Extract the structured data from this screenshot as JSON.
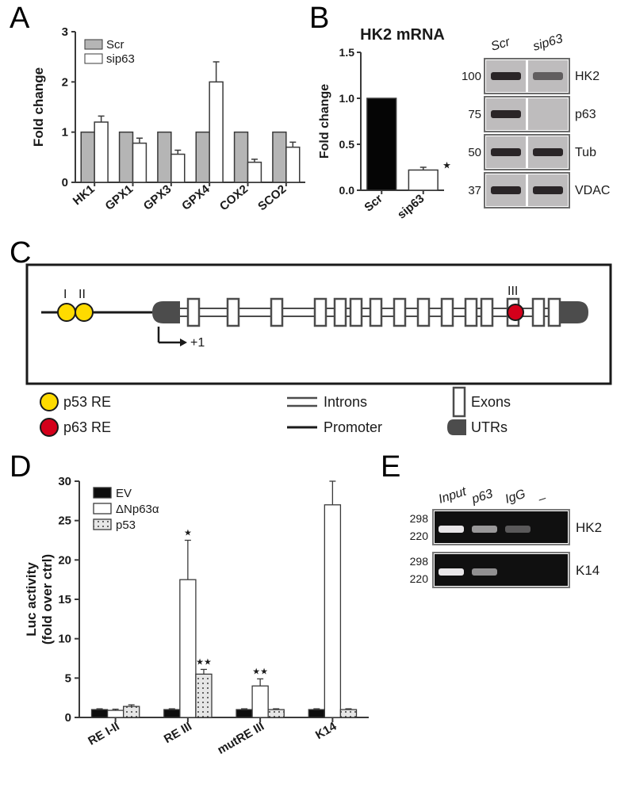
{
  "panels": {
    "A": {
      "label": "A"
    },
    "B": {
      "label": "B"
    },
    "C": {
      "label": "C"
    },
    "D": {
      "label": "D"
    },
    "E": {
      "label": "E"
    }
  },
  "panelA": {
    "ylabel": "Fold change",
    "ylim": [
      0,
      3
    ],
    "yticks": [
      0,
      1,
      2,
      3
    ],
    "legend": [
      "Scr",
      "sip63"
    ],
    "legend_colors": [
      "#b5b5b5",
      "#ffffff"
    ],
    "categories": [
      "HK1",
      "GPX1",
      "GPX3",
      "GPX4",
      "COX2",
      "SCO2"
    ],
    "values_scr": [
      1.0,
      1.0,
      1.0,
      1.0,
      1.0,
      1.0
    ],
    "values_sip63": [
      1.2,
      0.78,
      0.56,
      2.0,
      0.4,
      0.7
    ],
    "errors_sip63": [
      0.12,
      0.1,
      0.08,
      0.4,
      0.06,
      0.1
    ],
    "bar_stroke": "#3a3a3a",
    "axis_color": "#3a3a3a",
    "grid_bg": "#ffffff",
    "bar_width": 0.35
  },
  "panelB": {
    "title": "HK2 mRNA",
    "ylabel": "Fold change",
    "ylim": [
      0,
      1.5
    ],
    "yticks": [
      0,
      0.5,
      1.0,
      1.5
    ],
    "categories": [
      "Scr",
      "sip63"
    ],
    "values": [
      1.0,
      0.22
    ],
    "errors": [
      0,
      0.03
    ],
    "bar_colors": [
      "#050505",
      "#ffffff"
    ],
    "bar_stroke": "#3a3a3a",
    "sig_star": "★",
    "blot": {
      "lanes": [
        "Scr",
        "sip63"
      ],
      "rows": [
        {
          "mw": "100",
          "label": "HK2"
        },
        {
          "mw": "75",
          "label": "p63"
        },
        {
          "mw": "50",
          "label": "Tub"
        },
        {
          "mw": "37",
          "label": "VDAC"
        }
      ],
      "bg": "#bebcbd",
      "band_color": "#2a2527",
      "border": "#6c6c6c"
    }
  },
  "panelC": {
    "legend": {
      "p53re": "p53 RE",
      "p63re": "p63 RE",
      "introns": "Introns",
      "exons": "Exons",
      "promoter": "Promoter",
      "utrs": "UTRs"
    },
    "site_labels": {
      "I": "I",
      "II": "II",
      "III": "III"
    },
    "plus_one": "+1",
    "colors": {
      "p53_circle": "#fedb00",
      "p63_circle": "#d4001b",
      "gene_dark": "#4c4c4c",
      "exon_fill": "#ffffff",
      "intron_stroke": "#4c4c4c",
      "promoter_stroke": "#1a1a1a",
      "border": "#1a1a1a"
    }
  },
  "panelD": {
    "ylabel": "Luc activity\n(fold over ctrl)",
    "ylim": [
      0,
      30
    ],
    "yticks": [
      0,
      5,
      10,
      15,
      20,
      25,
      30
    ],
    "categories": [
      "RE I-II",
      "RE III",
      "mutRE III",
      "K14"
    ],
    "legend": [
      "EV",
      "ΔNp63α",
      "p53"
    ],
    "legend_fills": [
      "#0d0d0d",
      "#ffffff",
      "#dotted"
    ],
    "dotted_base": "#e6e6e6",
    "values_ev": [
      1.0,
      1.0,
      1.0,
      1.0
    ],
    "values_dnp63": [
      0.9,
      17.5,
      4.0,
      27.0
    ],
    "values_p53": [
      1.4,
      5.5,
      1.0,
      1.0
    ],
    "err_ev": [
      0.1,
      0.1,
      0.1,
      0.1
    ],
    "err_dnp63": [
      0.15,
      5.0,
      0.9,
      3.0
    ],
    "err_p53": [
      0.2,
      0.6,
      0.1,
      0.1
    ],
    "sig_marks": {
      "RE III_dnp63": "★",
      "RE III_p53": "★★",
      "mutRE III_dnp63": "★★"
    },
    "bar_stroke": "#3a3a3a"
  },
  "panelE": {
    "lanes": [
      "Input",
      "p63",
      "IgG",
      "–"
    ],
    "rows": [
      {
        "label": "HK2"
      },
      {
        "label": "K14"
      }
    ],
    "ladder": [
      "298",
      "220"
    ],
    "gel_bg": "#101010",
    "band_color": "#e8e6e8",
    "border": "#7a7a7a"
  }
}
